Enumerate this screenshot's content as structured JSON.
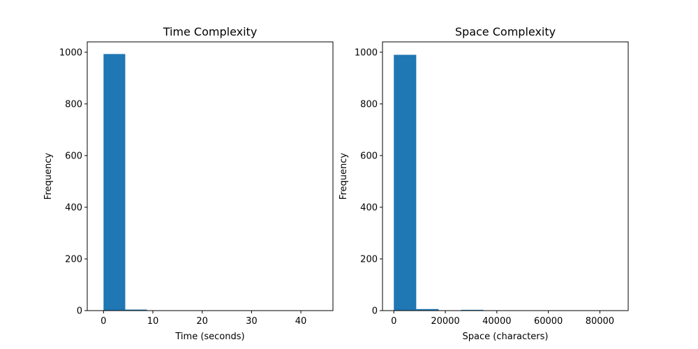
{
  "chart_data": [
    {
      "type": "bar",
      "title": "Time Complexity",
      "xlabel": "Time (seconds)",
      "ylabel": "Frequency",
      "xlim": [
        -3.3,
        46.5
      ],
      "ylim": [
        0,
        1040
      ],
      "xticks": [
        0,
        10,
        20,
        30,
        40
      ],
      "yticks": [
        0,
        200,
        400,
        600,
        800,
        1000
      ],
      "grid": false,
      "color": "#1f77b4",
      "bins": [
        {
          "x0": 0.0,
          "x1": 4.4,
          "count": 993
        },
        {
          "x0": 4.4,
          "x1": 8.8,
          "count": 4
        },
        {
          "x0": 8.8,
          "x1": 13.2,
          "count": 1
        },
        {
          "x0": 13.2,
          "x1": 17.6,
          "count": 0
        },
        {
          "x0": 17.6,
          "x1": 22.0,
          "count": 0
        },
        {
          "x0": 22.0,
          "x1": 26.4,
          "count": 0
        },
        {
          "x0": 26.4,
          "x1": 30.8,
          "count": 0
        },
        {
          "x0": 30.8,
          "x1": 35.2,
          "count": 0
        },
        {
          "x0": 35.2,
          "x1": 39.6,
          "count": 1
        },
        {
          "x0": 39.6,
          "x1": 44.0,
          "count": 1
        }
      ]
    },
    {
      "type": "bar",
      "title": "Space Complexity",
      "xlabel": "Space (characters)",
      "ylabel": "Frequency",
      "xlim": [
        -4400,
        91000
      ],
      "ylim": [
        0,
        1040
      ],
      "xticks": [
        0,
        20000,
        40000,
        60000,
        80000
      ],
      "yticks": [
        0,
        200,
        400,
        600,
        800,
        1000
      ],
      "grid": false,
      "color": "#1f77b4",
      "bins": [
        {
          "x0": 0,
          "x1": 8700,
          "count": 990
        },
        {
          "x0": 8700,
          "x1": 17400,
          "count": 6
        },
        {
          "x0": 17400,
          "x1": 26100,
          "count": 0
        },
        {
          "x0": 26100,
          "x1": 34800,
          "count": 3
        },
        {
          "x0": 34800,
          "x1": 43500,
          "count": 0
        },
        {
          "x0": 43500,
          "x1": 52200,
          "count": 0
        },
        {
          "x0": 52200,
          "x1": 60900,
          "count": 0
        },
        {
          "x0": 60900,
          "x1": 69600,
          "count": 0
        },
        {
          "x0": 69600,
          "x1": 78300,
          "count": 0
        },
        {
          "x0": 78300,
          "x1": 87000,
          "count": 1
        }
      ]
    }
  ]
}
